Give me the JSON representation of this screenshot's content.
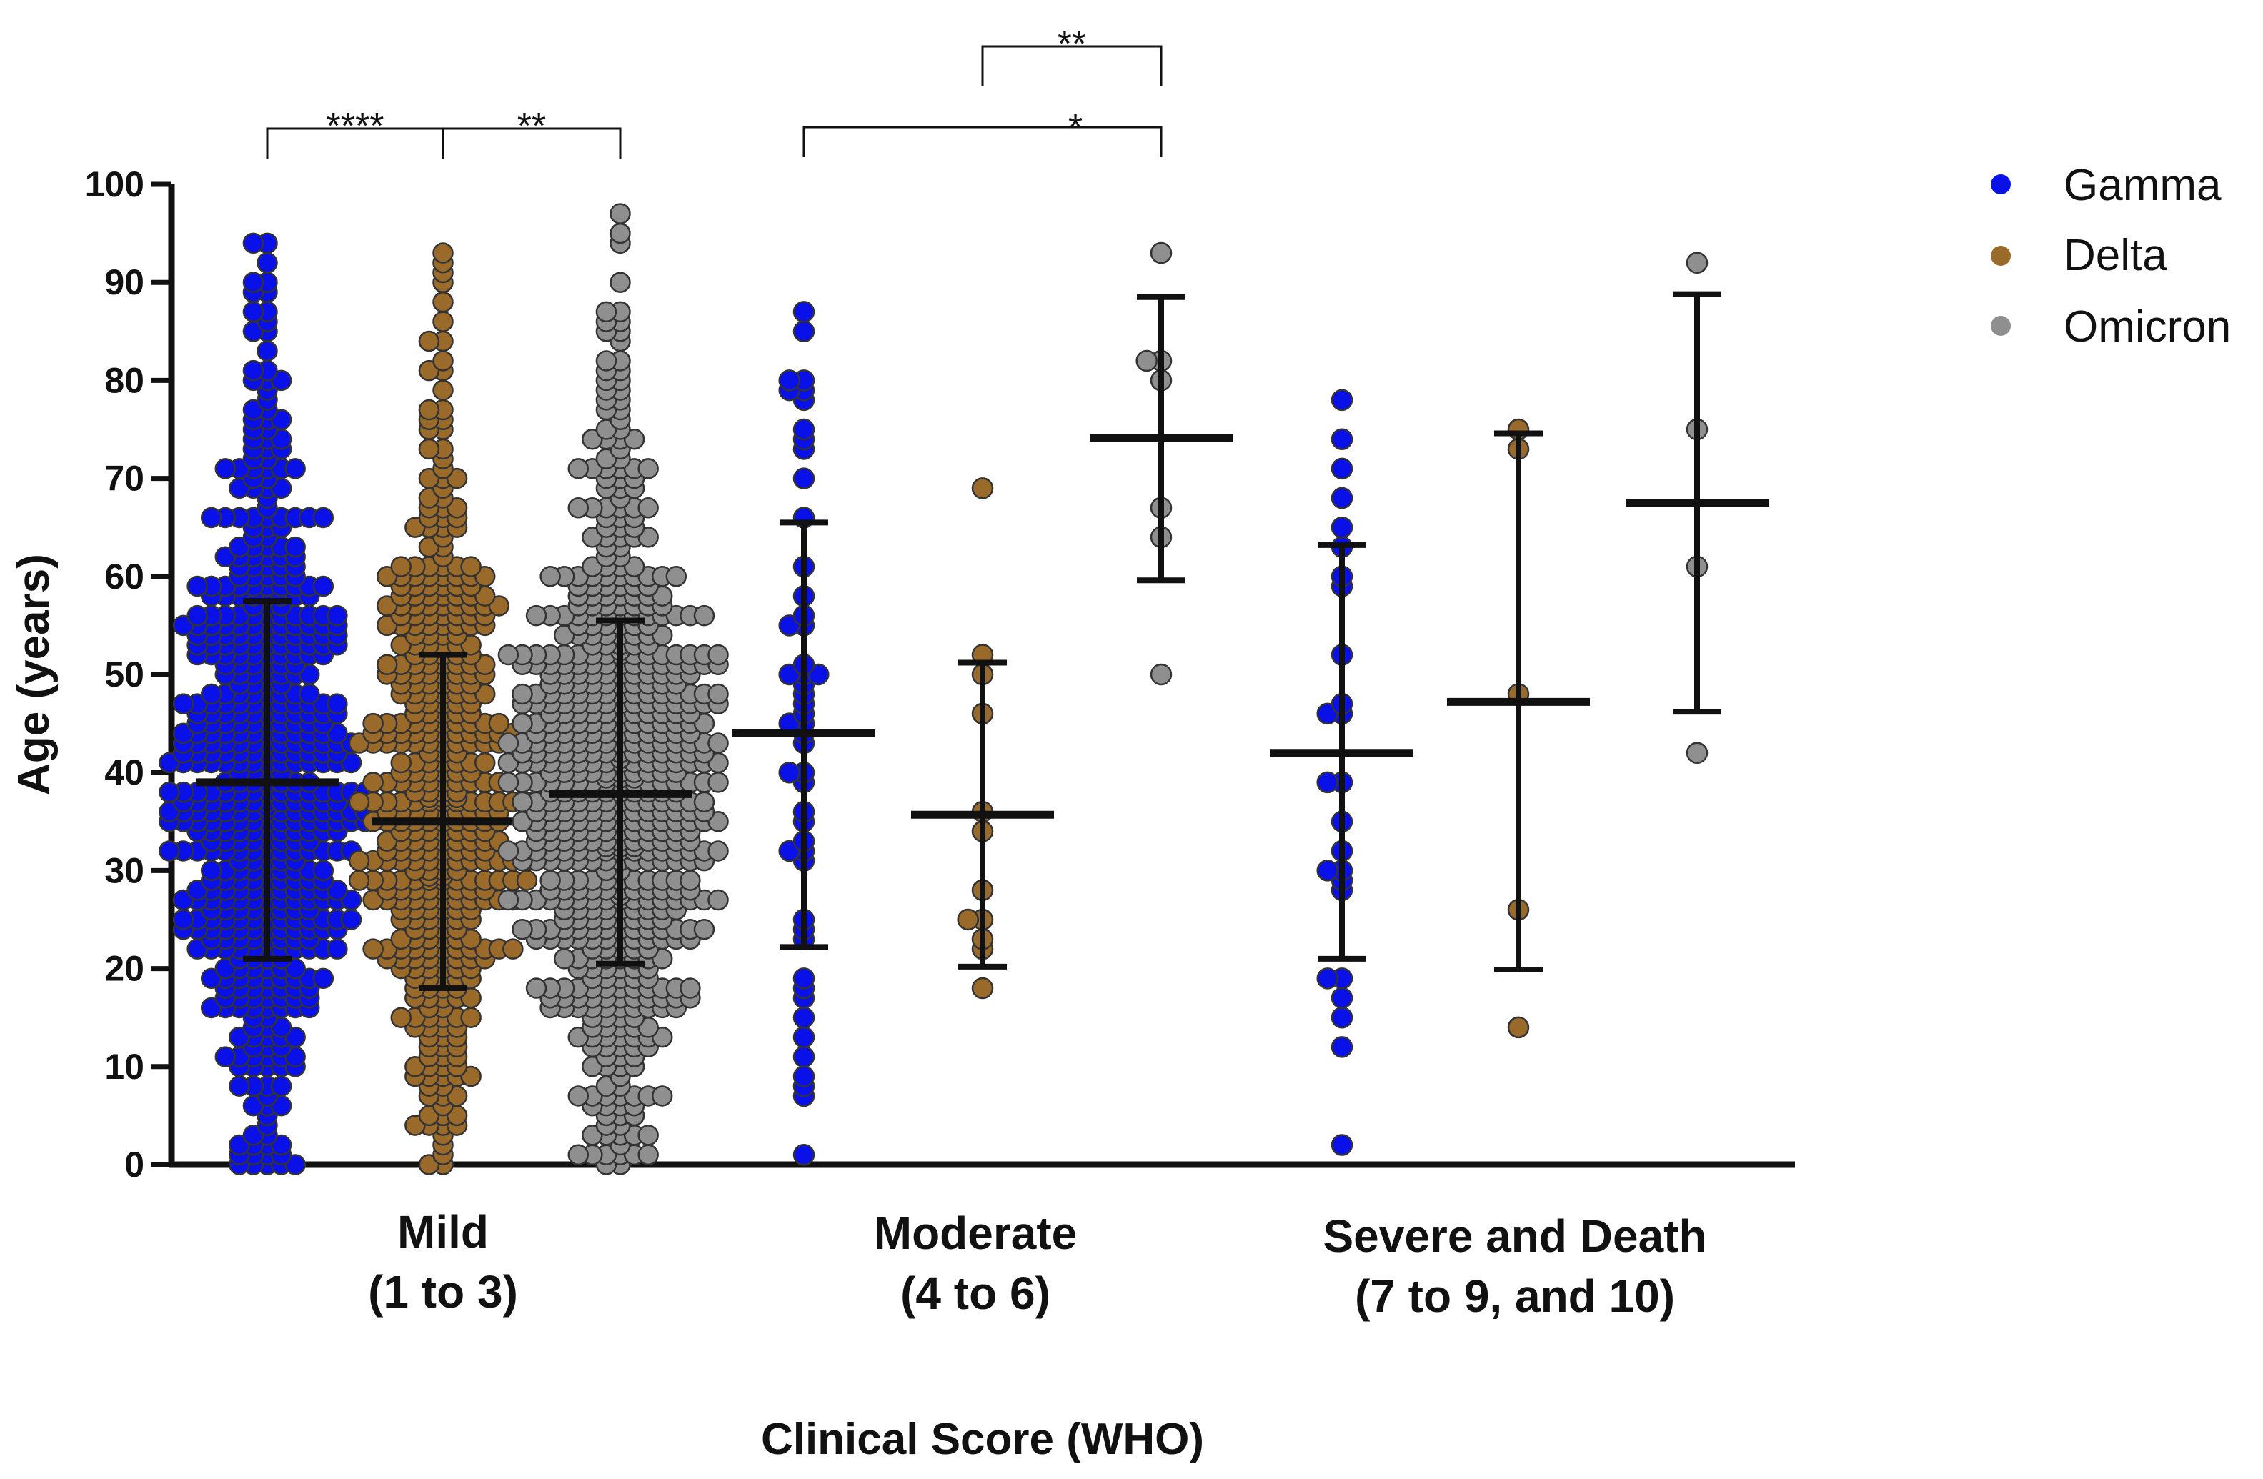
{
  "chart_data": {
    "type": "scatter",
    "subtype": "dot-plot with mean and standard deviation",
    "title": "",
    "xlabel": "Clinical Score (WHO)",
    "ylabel": "Age (years)",
    "ylim": [
      0,
      100
    ],
    "yticks": [
      0,
      10,
      20,
      30,
      40,
      50,
      60,
      70,
      80,
      90,
      100
    ],
    "legend_position": "top-right",
    "groups": [
      {
        "line1": "Mild",
        "line2": "(1 to 3)"
      },
      {
        "line1": "Moderate",
        "line2": "(4 to 6)"
      },
      {
        "line1": "Severe and Death",
        "line2": "(7 to 9, and 10)"
      }
    ],
    "series": [
      {
        "name": "Gamma",
        "color": "#0a10e8"
      },
      {
        "name": "Delta",
        "color": "#9a6a2a"
      },
      {
        "name": "Omicron",
        "color": "#8f8f8f"
      }
    ],
    "columns": [
      {
        "group": 0,
        "series": 0,
        "mean": 39,
        "sd_low": 21,
        "sd_high": 57.5,
        "n_points": 560,
        "points": [
          0,
          0,
          0,
          1,
          2,
          3,
          5,
          6,
          8,
          10,
          12,
          14,
          16,
          18,
          20,
          22,
          24,
          26,
          28,
          30,
          32,
          34,
          36,
          38,
          40,
          42,
          44,
          46,
          48,
          50,
          52,
          54,
          56,
          58,
          60,
          62,
          64,
          66,
          68,
          70,
          71,
          72,
          73,
          74,
          75,
          76,
          77,
          80,
          81,
          83,
          85,
          87,
          89,
          90,
          92,
          94
        ]
      },
      {
        "group": 0,
        "series": 1,
        "mean": 35,
        "sd_low": 18,
        "sd_high": 52,
        "n_points": 430,
        "points": [
          0,
          0,
          1,
          2,
          3,
          5,
          7,
          9,
          11,
          13,
          15,
          17,
          19,
          21,
          23,
          25,
          27,
          29,
          31,
          33,
          35,
          37,
          39,
          41,
          43,
          45,
          47,
          49,
          51,
          53,
          55,
          57,
          59,
          61,
          63,
          65,
          67,
          69,
          70,
          72,
          75,
          76,
          77,
          79,
          81,
          82,
          84,
          88,
          91,
          92,
          93
        ]
      },
      {
        "group": 0,
        "series": 2,
        "mean": 37.8,
        "sd_low": 20.5,
        "sd_high": 55.5,
        "n_points": 640,
        "points": [
          0,
          0,
          1,
          2,
          3,
          5,
          7,
          9,
          11,
          13,
          15,
          17,
          19,
          21,
          23,
          25,
          27,
          29,
          31,
          33,
          35,
          37,
          39,
          41,
          43,
          45,
          47,
          49,
          51,
          53,
          55,
          57,
          59,
          61,
          63,
          65,
          67,
          69,
          71,
          73,
          75,
          77,
          78,
          79,
          80,
          81,
          85,
          86,
          87,
          90,
          94,
          95,
          97
        ]
      },
      {
        "group": 1,
        "series": 0,
        "mean": 44,
        "sd_low": 22.2,
        "sd_high": 65.5,
        "points": [
          87,
          85,
          80,
          80,
          79,
          79,
          78,
          75,
          74,
          73,
          70,
          66,
          61,
          58,
          56,
          55,
          55,
          51,
          50,
          50,
          50,
          49,
          48,
          47,
          46,
          45,
          45,
          44,
          43,
          40,
          40,
          39,
          36,
          35,
          33,
          32,
          32,
          31,
          25,
          24,
          23,
          19,
          18,
          17,
          15,
          13,
          11,
          9,
          8,
          7,
          1
        ]
      },
      {
        "group": 1,
        "series": 1,
        "mean": 35.7,
        "sd_low": 20.2,
        "sd_high": 51.2,
        "points": [
          69,
          52,
          50,
          46,
          36,
          34,
          28,
          25,
          25,
          23,
          22,
          18
        ]
      },
      {
        "group": 1,
        "series": 2,
        "mean": 74.1,
        "sd_low": 59.6,
        "sd_high": 88.5,
        "points": [
          93,
          82,
          82,
          80,
          67,
          64,
          50
        ]
      },
      {
        "group": 2,
        "series": 0,
        "mean": 42,
        "sd_low": 21,
        "sd_high": 63.2,
        "points": [
          78,
          74,
          71,
          68,
          65,
          63,
          60,
          59,
          52,
          47,
          46,
          46,
          39,
          39,
          35,
          32,
          30,
          30,
          29,
          28,
          19,
          19,
          17,
          15,
          12,
          2
        ]
      },
      {
        "group": 2,
        "series": 1,
        "mean": 47.2,
        "sd_low": 19.9,
        "sd_high": 74.6,
        "points": [
          75,
          73,
          48,
          26,
          14
        ]
      },
      {
        "group": 2,
        "series": 2,
        "mean": 67.5,
        "sd_low": 46.2,
        "sd_high": 88.8,
        "points": [
          92,
          75,
          61,
          42
        ]
      }
    ],
    "significance": [
      {
        "from": 0,
        "to": 1,
        "label": "****"
      },
      {
        "from": 1,
        "to": 2,
        "label": "**"
      },
      {
        "from": 3,
        "to": 5,
        "label": "*"
      },
      {
        "from": 4,
        "to": 5,
        "label": "**"
      }
    ]
  }
}
